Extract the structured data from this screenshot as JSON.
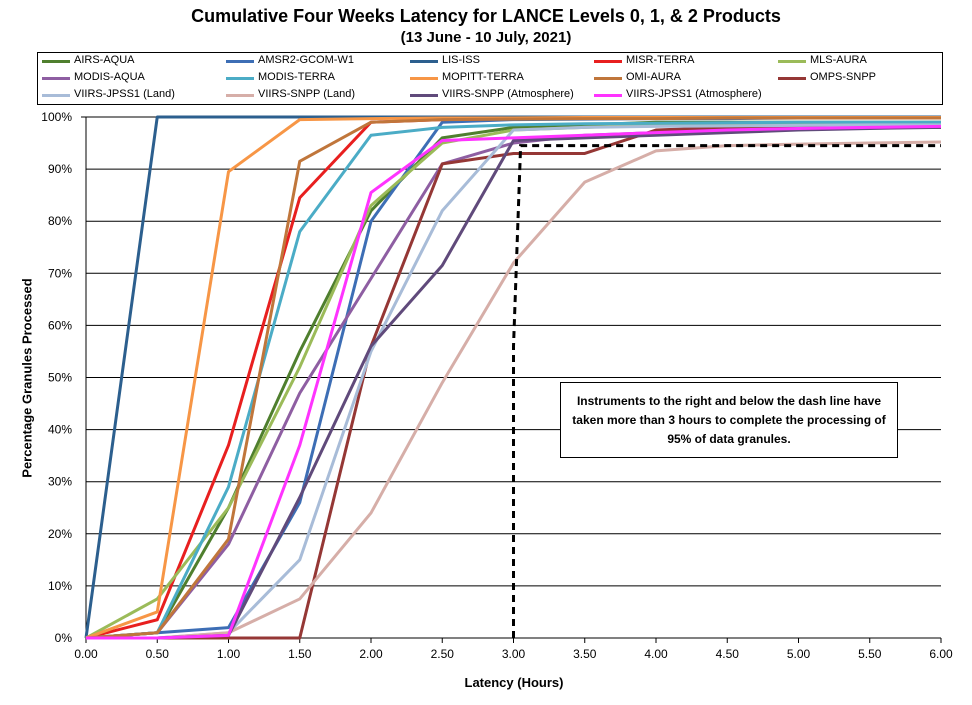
{
  "chart_data": {
    "type": "line",
    "title": "Cumulative Four Weeks Latency  for LANCE Levels 0, 1, & 2 Products",
    "subtitle": "(13 June  - 10 July, 2021)",
    "xlabel": "Latency (Hours)",
    "ylabel": "Percentage Granules Processed",
    "xlim": [
      0,
      6
    ],
    "ylim": [
      0,
      100
    ],
    "grid": true,
    "legend_position": "top",
    "x_ticks": [
      "0.00",
      "0.50",
      "1.00",
      "1.50",
      "2.00",
      "2.50",
      "3.00",
      "3.50",
      "4.00",
      "4.50",
      "5.00",
      "5.50",
      "6.00"
    ],
    "y_ticks": [
      "0%",
      "10%",
      "20%",
      "30%",
      "40%",
      "50%",
      "60%",
      "70%",
      "80%",
      "90%",
      "100%"
    ],
    "x": [
      0,
      0.5,
      1,
      1.5,
      2,
      2.5,
      3,
      3.5,
      4,
      4.5,
      5,
      5.5,
      6
    ],
    "series": [
      {
        "name": "AIRS-AQUA",
        "color": "#4f7f2e",
        "values": [
          0,
          1,
          25,
          55,
          82,
          96,
          98,
          98.5,
          99,
          99,
          99,
          99,
          99
        ]
      },
      {
        "name": "AMSR2-GCOM-W1",
        "color": "#3d6eb5",
        "values": [
          0,
          1,
          2,
          26,
          80,
          99,
          99.5,
          99.6,
          99.7,
          99.7,
          99.8,
          99.8,
          99.8
        ]
      },
      {
        "name": "LIS-ISS",
        "color": "#2c5f8e",
        "values": [
          0,
          100,
          100,
          100,
          100,
          100,
          100,
          100,
          100,
          100,
          100,
          100,
          100
        ]
      },
      {
        "name": "MISR-TERRA",
        "color": "#e81f1f",
        "values": [
          0,
          3.5,
          37,
          84.5,
          99,
          99.5,
          99.7,
          99.8,
          99.9,
          99.9,
          99.9,
          99.9,
          99.9
        ]
      },
      {
        "name": "MLS-AURA",
        "color": "#9bbb59",
        "values": [
          0,
          7.5,
          25,
          52,
          83,
          95,
          97.5,
          98,
          98.5,
          98.7,
          98.8,
          98.9,
          99
        ]
      },
      {
        "name": "MODIS-AQUA",
        "color": "#8e5ea2",
        "values": [
          0,
          1,
          18,
          47,
          69,
          91,
          95,
          96.5,
          97,
          97.5,
          97.8,
          98,
          98.2
        ]
      },
      {
        "name": "MODIS-TERRA",
        "color": "#4bacc6",
        "values": [
          0,
          1,
          29,
          78,
          96.5,
          98,
          98.5,
          98.7,
          98.8,
          98.9,
          99,
          99,
          99
        ]
      },
      {
        "name": "MOPITT-TERRA",
        "color": "#f79646",
        "values": [
          0,
          5,
          89.5,
          99.5,
          99.7,
          99.8,
          99.8,
          99.9,
          99.9,
          99.9,
          99.9,
          99.9,
          99.9
        ]
      },
      {
        "name": "OMI-AURA",
        "color": "#c0763b",
        "values": [
          0,
          1,
          19,
          91.5,
          99,
          99.5,
          99.6,
          99.7,
          99.7,
          99.8,
          99.8,
          99.8,
          99.8
        ]
      },
      {
        "name": "OMPS-SNPP",
        "color": "#953735",
        "values": [
          0,
          0,
          0,
          0,
          56,
          91,
          93,
          93,
          97.5,
          98,
          98,
          98,
          98
        ]
      },
      {
        "name": "VIIRS-JPSS1 (Land)",
        "color": "#a8bcd8",
        "values": [
          0,
          0,
          1,
          15,
          55,
          82,
          97.5,
          98,
          98.2,
          98.3,
          98.4,
          98.5,
          98.5
        ]
      },
      {
        "name": "VIIRS-SNPP (Land)",
        "color": "#d6aea8",
        "values": [
          0,
          0,
          1,
          7.5,
          24,
          49,
          72,
          87.5,
          93.5,
          94.5,
          94.8,
          95,
          95.2
        ]
      },
      {
        "name": "VIIRS-SNPP (Atmosphere)",
        "color": "#604a7b",
        "values": [
          0,
          0,
          0.5,
          27,
          56,
          71.5,
          95.5,
          96,
          96.5,
          97,
          97.5,
          97.8,
          98
        ]
      },
      {
        "name": "VIIRS-JPSS1 (Atmosphere)",
        "color": "#ff33ff",
        "values": [
          0,
          0,
          0.5,
          37,
          85.5,
          95.5,
          96,
          96.5,
          97,
          97.5,
          97.8,
          98,
          98.2
        ]
      }
    ],
    "threshold_line": {
      "x": [
        3.0,
        3.0,
        3.05,
        6.0
      ],
      "y": [
        0,
        56,
        94.5,
        94.5
      ]
    },
    "annotation": "Instruments to the right and below the dash line have taken more than 3 hours to complete the processing of 95% of data granules."
  }
}
